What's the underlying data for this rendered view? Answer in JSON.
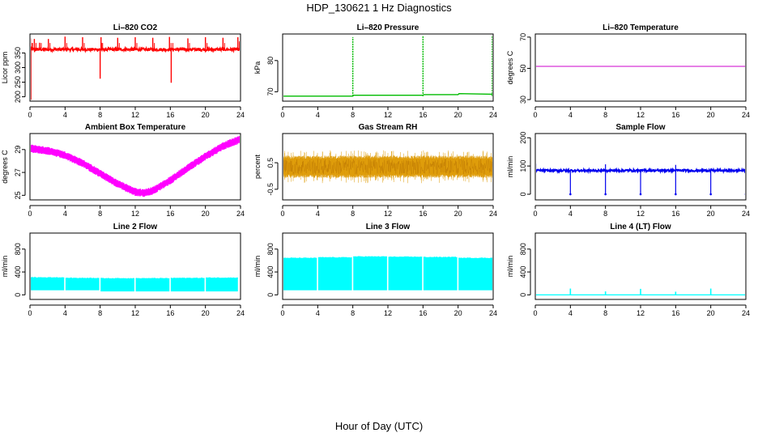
{
  "page_title": "HDP_130621  1 Hz Diagnostics",
  "x_axis_label": "Hour of Day (UTC)",
  "chart_data": [
    {
      "id": "co2",
      "type": "line",
      "title": "Li–820 CO2",
      "ylabel": "Licor ppm",
      "color": "#ff0000",
      "xlim": [
        0,
        24
      ],
      "ylim": [
        185,
        415
      ],
      "xticks": [
        0,
        4,
        8,
        12,
        16,
        20,
        24
      ],
      "yticks": [
        200,
        250,
        300,
        350
      ],
      "base": 362,
      "noise": 5,
      "events": [
        {
          "x": 0.1,
          "y": 190
        },
        {
          "x": 0.05,
          "y": 400
        },
        {
          "x": 0.5,
          "y": 398
        },
        {
          "x": 1.1,
          "y": 385
        },
        {
          "x": 2.1,
          "y": 398
        },
        {
          "x": 4.0,
          "y": 406
        },
        {
          "x": 6.0,
          "y": 404
        },
        {
          "x": 8.0,
          "y": 262
        },
        {
          "x": 8.1,
          "y": 404
        },
        {
          "x": 10.0,
          "y": 402
        },
        {
          "x": 12.0,
          "y": 404
        },
        {
          "x": 14.0,
          "y": 402
        },
        {
          "x": 15.9,
          "y": 405
        },
        {
          "x": 16.1,
          "y": 248
        },
        {
          "x": 18.0,
          "y": 400
        },
        {
          "x": 20.0,
          "y": 404
        },
        {
          "x": 22.0,
          "y": 402
        },
        {
          "x": 23.7,
          "y": 404
        },
        {
          "x": 23.9,
          "y": 390
        }
      ]
    },
    {
      "id": "pressure",
      "type": "line",
      "title": "Li–820 Pressure",
      "ylabel": "kPa",
      "color": "#00bb00",
      "xlim": [
        0,
        24
      ],
      "ylim": [
        67,
        88.5
      ],
      "xticks": [
        0,
        4,
        8,
        12,
        16,
        20,
        24
      ],
      "yticks": [
        70,
        80
      ],
      "segments": [
        [
          0.1,
          68.6
        ],
        [
          8.0,
          68.6
        ],
        [
          8.05,
          68.9
        ],
        [
          16.0,
          68.9
        ],
        [
          16.1,
          69.1
        ],
        [
          20.0,
          69.1
        ],
        [
          20.1,
          69.4
        ],
        [
          24.0,
          69.2
        ]
      ],
      "spikes": [
        {
          "x": 0.0,
          "y": 86.5
        },
        {
          "x": 8.0,
          "y": 87.5
        },
        {
          "x": 16.0,
          "y": 88
        },
        {
          "x": 23.9,
          "y": 88
        }
      ]
    },
    {
      "id": "temperature",
      "type": "line",
      "title": "Li–820 Temperature",
      "ylabel": "degrees C",
      "color": "#cc00cc",
      "xlim": [
        0,
        24
      ],
      "ylim": [
        29,
        72
      ],
      "xticks": [
        0,
        4,
        8,
        12,
        16,
        20,
        24
      ],
      "yticks": [
        30,
        50,
        70
      ],
      "x": [
        0,
        24
      ],
      "y": [
        51.3,
        51.3
      ]
    },
    {
      "id": "ambient",
      "type": "line",
      "title": "Ambient Box Temperature",
      "ylabel": "degrees C",
      "color": "#ff00ff",
      "xlim": [
        0,
        24
      ],
      "ylim": [
        24.6,
        30.4
      ],
      "xticks": [
        0,
        4,
        8,
        12,
        16,
        20,
        24
      ],
      "yticks": [
        25,
        27,
        29
      ],
      "x": [
        0,
        2,
        4,
        6,
        8,
        10,
        12,
        13,
        14,
        16,
        18,
        20,
        22,
        24
      ],
      "y": [
        29.1,
        28.9,
        28.5,
        27.8,
        26.9,
        26.0,
        25.3,
        25.2,
        25.4,
        26.3,
        27.4,
        28.4,
        29.3,
        29.9
      ],
      "band": 0.35
    },
    {
      "id": "rh",
      "type": "line",
      "title": "Gas Stream RH",
      "ylabel": "percent",
      "color": "#dd9900",
      "xlim": [
        0,
        24
      ],
      "ylim": [
        -0.9,
        1.6
      ],
      "xticks": [
        0,
        4,
        8,
        12,
        16,
        20,
        24
      ],
      "yticks": [
        -0.5,
        0.5
      ],
      "center": 0.35,
      "amp": 0.42,
      "extreme": 0.62
    },
    {
      "id": "sample",
      "type": "line",
      "title": "Sample Flow",
      "ylabel": "ml/min",
      "color": "#0000ee",
      "xlim": [
        0,
        24
      ],
      "ylim": [
        -20,
        215
      ],
      "xticks": [
        0,
        4,
        8,
        12,
        16,
        20,
        24
      ],
      "yticks": [
        0,
        100,
        200
      ],
      "base": 84,
      "noise": 4,
      "dips": [
        {
          "x": 4.0,
          "y": 0
        },
        {
          "x": 8.0,
          "y": 0
        },
        {
          "x": 12.0,
          "y": 0
        },
        {
          "x": 16.0,
          "y": 0
        },
        {
          "x": 20.0,
          "y": 0
        },
        {
          "x": 24.0,
          "y": 0
        }
      ],
      "peaks": [
        {
          "x": 0.05,
          "y": 108
        },
        {
          "x": 8.0,
          "y": 106
        },
        {
          "x": 16.0,
          "y": 104
        }
      ]
    },
    {
      "id": "line2",
      "type": "area",
      "title": "Line 2 Flow",
      "ylabel": "ml/min",
      "color": "#00ffff",
      "xlim": [
        0,
        24
      ],
      "ylim": [
        -80,
        1080
      ],
      "xticks": [
        0,
        4,
        8,
        12,
        16,
        20,
        24
      ],
      "yticks": [
        0,
        400,
        800
      ],
      "blocks": [
        {
          "x0": 0.1,
          "x1": 3.9,
          "lo": 80,
          "hi": 300
        },
        {
          "x0": 4.05,
          "x1": 7.9,
          "lo": 80,
          "hi": 290
        },
        {
          "x0": 8.05,
          "x1": 11.9,
          "lo": 60,
          "hi": 285
        },
        {
          "x0": 12.05,
          "x1": 15.9,
          "lo": 60,
          "hi": 285
        },
        {
          "x0": 16.05,
          "x1": 19.9,
          "lo": 60,
          "hi": 290
        },
        {
          "x0": 20.05,
          "x1": 23.7,
          "lo": 60,
          "hi": 295
        }
      ]
    },
    {
      "id": "line3",
      "type": "area",
      "title": "Line 3 Flow",
      "ylabel": "ml/min",
      "color": "#00ffff",
      "xlim": [
        0,
        24
      ],
      "ylim": [
        -80,
        1080
      ],
      "xticks": [
        0,
        4,
        8,
        12,
        16,
        20,
        24
      ],
      "yticks": [
        0,
        400,
        800
      ],
      "blocks": [
        {
          "x0": 0.1,
          "x1": 3.9,
          "lo": 80,
          "hi": 640
        },
        {
          "x0": 4.05,
          "x1": 7.9,
          "lo": 80,
          "hi": 650
        },
        {
          "x0": 8.05,
          "x1": 11.9,
          "lo": 80,
          "hi": 665
        },
        {
          "x0": 12.05,
          "x1": 15.9,
          "lo": 80,
          "hi": 660
        },
        {
          "x0": 16.05,
          "x1": 19.9,
          "lo": 80,
          "hi": 655
        },
        {
          "x0": 20.05,
          "x1": 24.0,
          "lo": 80,
          "hi": 640
        }
      ]
    },
    {
      "id": "line4",
      "type": "line",
      "title": "Line 4 (LT) Flow",
      "ylabel": "ml/min",
      "color": "#00ffff",
      "xlim": [
        0,
        24
      ],
      "ylim": [
        -80,
        1080
      ],
      "xticks": [
        0,
        4,
        8,
        12,
        16,
        20,
        24
      ],
      "yticks": [
        0,
        400,
        800
      ],
      "base": 0,
      "spikes": [
        {
          "x": 4.0,
          "y": 110
        },
        {
          "x": 8.0,
          "y": 60
        },
        {
          "x": 12.0,
          "y": 105
        },
        {
          "x": 16.0,
          "y": 55
        },
        {
          "x": 20.0,
          "y": 110
        },
        {
          "x": 24.0,
          "y": 50
        }
      ]
    }
  ]
}
